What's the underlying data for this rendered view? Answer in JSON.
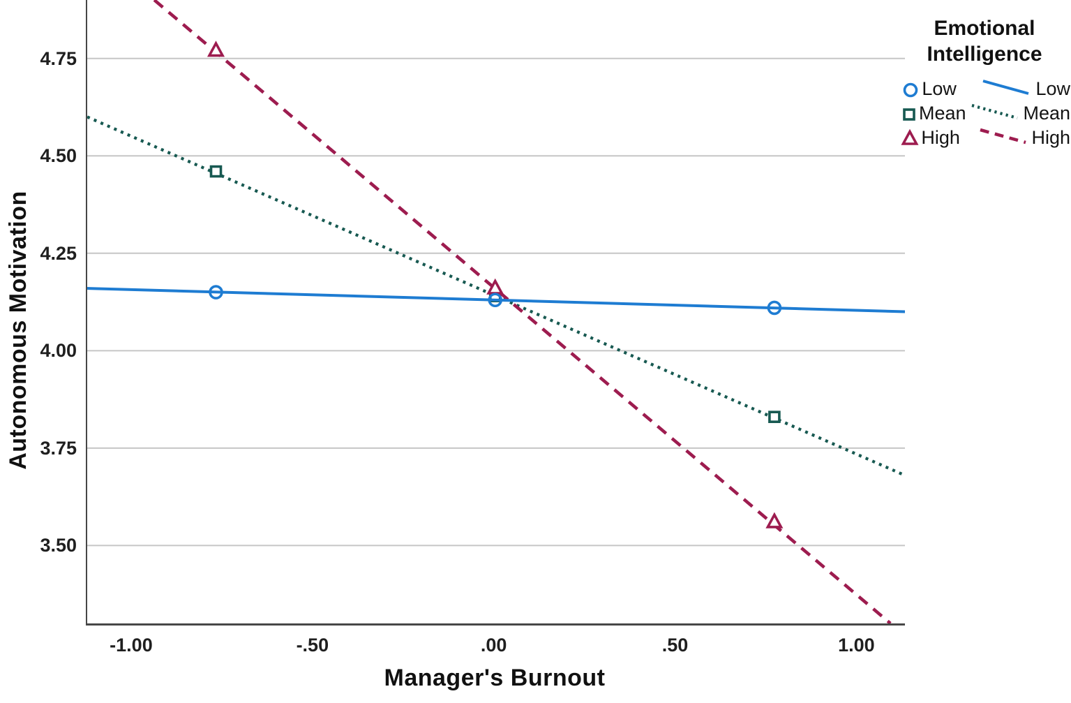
{
  "chart_data": {
    "type": "line",
    "title": "",
    "xlabel": "Manager's Burnout",
    "ylabel": "Autonomous Motivation",
    "xlim": [
      -1.125,
      1.13
    ],
    "ylim": [
      3.3,
      4.9
    ],
    "grid": "horizontal-only",
    "legend_position": "top-right-outside",
    "xticks": {
      "values": [
        -1.0,
        -0.5,
        0.0,
        0.5,
        1.0
      ],
      "labels": [
        "-1.00",
        "-.50",
        ".00",
        ".50",
        "1.00"
      ]
    },
    "yticks": {
      "values": [
        4.75,
        4.5,
        4.25,
        4.0,
        3.75,
        3.5
      ],
      "labels": [
        "4.75",
        "4.50",
        "4.25",
        "4.00",
        "3.75",
        "3.50"
      ]
    },
    "series": [
      {
        "name": "Low",
        "color": "#1E7CD2",
        "line_style": "solid",
        "marker": "circle",
        "points": [
          [
            -0.77,
            4.15
          ],
          [
            0.0,
            4.13
          ],
          [
            0.77,
            4.11
          ]
        ],
        "line": {
          "x1": -1.125,
          "y1": 4.16,
          "x2": 1.13,
          "y2": 4.1
        }
      },
      {
        "name": "Mean",
        "color": "#175951",
        "line_style": "dotted",
        "marker": "square",
        "points": [
          [
            -0.77,
            4.46
          ],
          [
            0.0,
            4.14
          ],
          [
            0.77,
            3.83
          ]
        ],
        "line": {
          "x1": -1.125,
          "y1": 4.6,
          "x2": 1.13,
          "y2": 3.68
        }
      },
      {
        "name": "High",
        "color": "#9D1C4F",
        "line_style": "dashed",
        "marker": "triangle",
        "points": [
          [
            -0.77,
            4.77
          ],
          [
            0.0,
            4.16
          ],
          [
            0.77,
            3.56
          ]
        ],
        "line": {
          "x1": -0.94,
          "y1": 4.9,
          "x2": 1.09,
          "y2": 3.3
        }
      }
    ]
  },
  "legend": {
    "title": "Emotional Intelligence",
    "rows": [
      {
        "marker_label": "Low",
        "line_label": "Low"
      },
      {
        "marker_label": "Mean",
        "line_label": "Mean"
      },
      {
        "marker_label": "High",
        "line_label": "High"
      }
    ]
  },
  "colors": {
    "frame": "#474747",
    "gridline": "#c6c6c6",
    "tick_text": "#1f1f1f",
    "title_text": "#111111",
    "series_low": "#1E7CD2",
    "series_mean": "#175951",
    "series_high": "#9D1C4F"
  }
}
